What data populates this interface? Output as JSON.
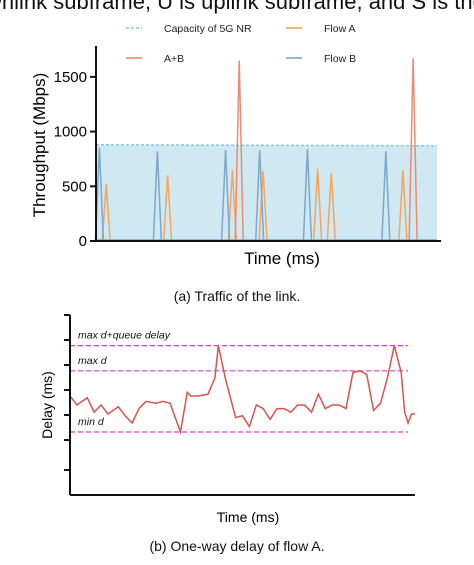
{
  "header_text": "wnlink subframe, U is uplink subframe, and S is the spe",
  "chart_data": [
    {
      "type": "line",
      "caption": "(a)  Traffic of the link.",
      "xlabel": "Time (ms)",
      "ylabel": "Throughput (Mbps)",
      "ylim": [
        0,
        1700
      ],
      "yticks": [
        0,
        500,
        1000,
        1500
      ],
      "grid": false,
      "legend_position": "top",
      "colors": {
        "capacity": "#86c9d8",
        "capacity_fill": "#cfe8f1",
        "flow_a": "#f5a55c",
        "ab": "#ec8b73",
        "flow_b": "#7da7cc",
        "axis": "#111111"
      },
      "series": [
        {
          "name": "Capacity of 5G NR",
          "key": "capacity",
          "style": "dashed-filled",
          "x": [
            0,
            100
          ],
          "values": [
            880,
            870
          ]
        },
        {
          "name": "Flow  A",
          "key": "flow_a",
          "style": "spikes",
          "x": [
            3,
            21,
            40,
            49,
            65,
            69,
            90
          ],
          "values": [
            520,
            600,
            650,
            640,
            660,
            620,
            650
          ]
        },
        {
          "name": "A+B",
          "key": "ab",
          "style": "spikes",
          "x": [
            42,
            93
          ],
          "values": [
            1650,
            1670
          ]
        },
        {
          "name": "Flow B",
          "key": "flow_b",
          "style": "spikes",
          "x": [
            1,
            18,
            38,
            48,
            62,
            85
          ],
          "values": [
            850,
            820,
            830,
            830,
            840,
            820
          ]
        }
      ]
    },
    {
      "type": "line",
      "caption": "(b)  One-way delay of flow A.",
      "xlabel": "Time (ms)",
      "ylabel": "Delay (ms)",
      "ylim": [
        0,
        100
      ],
      "grid": false,
      "colors": {
        "line": "#d9544a",
        "ref": "#d53fd3",
        "axis": "#111111"
      },
      "reference_lines": [
        {
          "label": "max d+queue delay",
          "value": 83
        },
        {
          "label": "max d",
          "value": 69
        },
        {
          "label": "min d",
          "value": 35
        }
      ],
      "series": [
        {
          "name": "",
          "x": [
            0,
            2,
            5,
            7,
            9,
            11,
            14,
            16,
            18,
            20,
            22,
            25,
            27,
            29,
            32,
            34,
            35,
            37,
            40,
            42,
            43,
            45,
            48,
            50,
            52,
            54,
            56,
            58,
            60,
            62,
            64,
            66,
            68,
            70,
            72,
            74,
            76,
            78,
            80,
            82,
            84,
            86,
            88,
            90,
            92,
            94,
            96,
            97,
            98,
            99,
            100
          ],
          "values": [
            55,
            50,
            54,
            46,
            50,
            45,
            49,
            44,
            40,
            48,
            52,
            51,
            52,
            51,
            35,
            57,
            55,
            55,
            56,
            65,
            83,
            65,
            43,
            44,
            38,
            50,
            48,
            42,
            48,
            48,
            46,
            50,
            50,
            46,
            56,
            48,
            50,
            50,
            48,
            68,
            69,
            67,
            47,
            51,
            65,
            83,
            68,
            46,
            40,
            45,
            45
          ]
        }
      ]
    }
  ]
}
